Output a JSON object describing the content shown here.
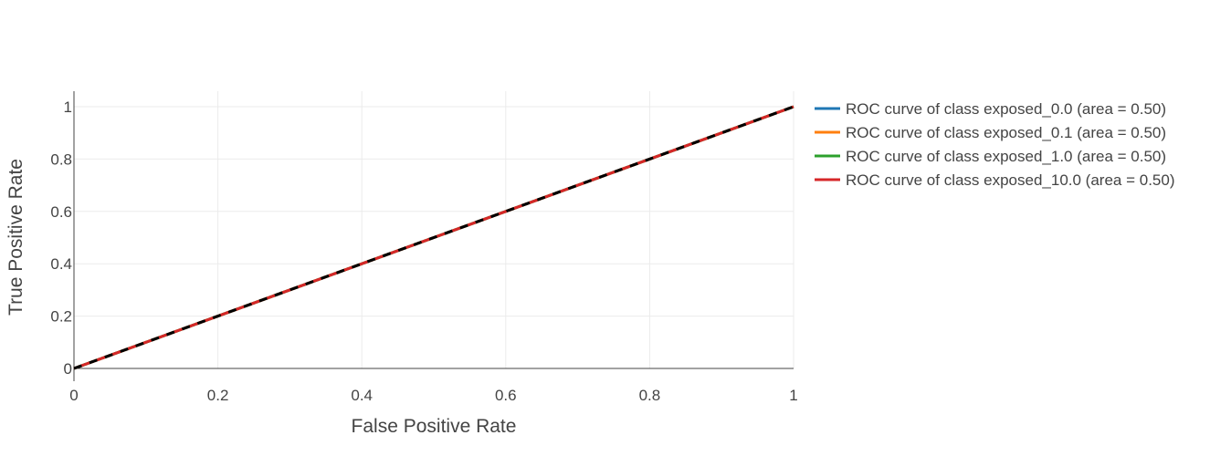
{
  "chart_data": {
    "type": "line",
    "title": "",
    "xlabel": "False Positive Rate",
    "ylabel": "True Positive Rate",
    "xlim": [
      0,
      1
    ],
    "ylim": [
      0,
      1
    ],
    "xticks": [
      0,
      0.2,
      0.4,
      0.6,
      0.8,
      1
    ],
    "yticks": [
      0,
      0.2,
      0.4,
      0.6,
      0.8,
      1
    ],
    "xtick_labels": [
      "0",
      "0.2",
      "0.4",
      "0.6",
      "0.8",
      "1"
    ],
    "ytick_labels": [
      "0",
      "0.2",
      "0.4",
      "0.6",
      "0.8",
      "1"
    ],
    "grid": true,
    "legend_position": "right",
    "series": [
      {
        "name": "ROC curve of class exposed_0.0 (area = 0.50)",
        "color": "#1f77b4",
        "x": [
          0,
          1
        ],
        "y": [
          0,
          1
        ]
      },
      {
        "name": "ROC curve of class exposed_0.1 (area = 0.50)",
        "color": "#ff7f0e",
        "x": [
          0,
          1
        ],
        "y": [
          0,
          1
        ]
      },
      {
        "name": "ROC curve of class exposed_1.0 (area = 0.50)",
        "color": "#2ca02c",
        "x": [
          0,
          1
        ],
        "y": [
          0,
          1
        ]
      },
      {
        "name": "ROC curve of class exposed_10.0 (area = 0.50)",
        "color": "#d62728",
        "x": [
          0,
          1
        ],
        "y": [
          0,
          1
        ]
      }
    ],
    "reference_line": {
      "x": [
        0,
        1
      ],
      "y": [
        0,
        1
      ],
      "color": "#000000",
      "style": "dashed"
    }
  }
}
